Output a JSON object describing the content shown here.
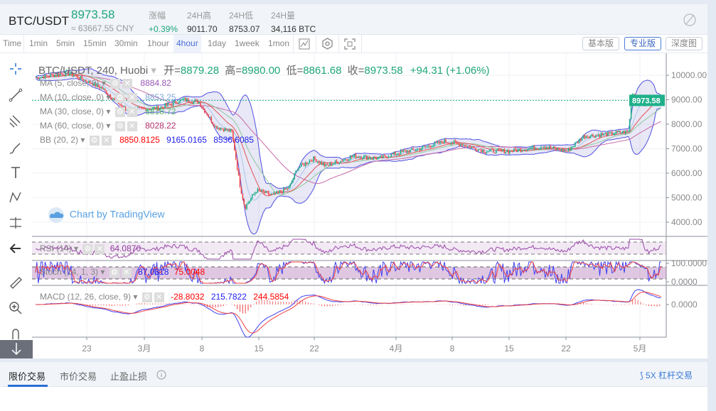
{
  "header": {
    "pair": "BTC/USDT",
    "price": "8973.58",
    "cny": "≈ 63667.55 CNY",
    "stats": [
      {
        "label": "涨幅",
        "value": "+0.39%",
        "color": "#1fa67a"
      },
      {
        "label": "24H高",
        "value": "9011.70"
      },
      {
        "label": "24H低",
        "value": "8753.07"
      },
      {
        "label": "24H量",
        "value": "34,116 BTC"
      }
    ],
    "icon": "brush-off-icon"
  },
  "toolbar": {
    "intervals": [
      "Time",
      "1min",
      "5min",
      "15min",
      "30min",
      "1hour",
      "4hour",
      "1day",
      "1week",
      "1mon"
    ],
    "active": "4hour",
    "views": [
      "基本版",
      "专业版",
      "深度图"
    ],
    "active_view": "专业版"
  },
  "chart": {
    "title": "BTC/USDT, 240, Huobi",
    "ohlc": {
      "open_label": "开=",
      "open": "8879.28",
      "high_label": "高=",
      "high": "8980.00",
      "low_label": "低=",
      "low": "8861.68",
      "close_label": "收=",
      "close": "8973.58",
      "change": "+94.31 (+1.06%)"
    },
    "indicators": [
      {
        "label": "MA (5, close, 0)",
        "value": "8884.82",
        "color": "#9b59b6"
      },
      {
        "label": "MA (10, close, 0)",
        "value": "8853.25",
        "color": "#7fa7d9"
      },
      {
        "label": "MA (30, close, 0)",
        "value": "8818.72",
        "color": "#5fb36c"
      },
      {
        "label": "MA (60, close, 0)",
        "value": "8028.22",
        "color": "#b5316e"
      },
      {
        "label": "BB (20, 2)",
        "values": [
          "8850.8125",
          "9165.0165",
          "8536.6085"
        ],
        "colors": [
          "#f00",
          "#2020f0",
          "#2020f0"
        ]
      }
    ],
    "watermark": "Chart by TradingView",
    "price_ticks": [
      "10000.00",
      "9000.00",
      "8000.00",
      "7000.00",
      "6000.00",
      "5000.00",
      "4000.00"
    ],
    "last_price_tag": "8973.58",
    "rsi": {
      "label": "RSI (14)",
      "value": "64.0870"
    },
    "stoch": {
      "label": "Stoch (14, 1, 3)",
      "k": "87.0318",
      "d": "75.0048",
      "ticks": [
        "100.0000",
        "0.0000"
      ]
    },
    "macd": {
      "label": "MACD (12, 26, close, 9)",
      "values": [
        "-28.8032",
        "215.7822",
        "244.5854"
      ],
      "tick": "0.0000"
    },
    "date_ticks": [
      "23",
      "3月",
      "8",
      "15",
      "22",
      "4月",
      "8",
      "15",
      "22",
      "5月"
    ]
  },
  "chart_data": {
    "type": "candlestick",
    "title": "BTC/USDT, 240, Huobi",
    "ylim": [
      3500,
      10500
    ],
    "x_unit": "days since Feb 17",
    "close_anchors": [
      [
        0,
        9900
      ],
      [
        4,
        10100
      ],
      [
        8,
        9500
      ],
      [
        11,
        8600
      ],
      [
        15,
        8650
      ],
      [
        18,
        9000
      ],
      [
        20,
        8900
      ],
      [
        22,
        7900
      ],
      [
        24,
        7700
      ],
      [
        25,
        5500
      ],
      [
        25.6,
        4600
      ],
      [
        27,
        5300
      ],
      [
        29,
        5100
      ],
      [
        31,
        5400
      ],
      [
        32,
        6200
      ],
      [
        34,
        6600
      ],
      [
        35.5,
        6300
      ],
      [
        39,
        6700
      ],
      [
        42,
        6600
      ],
      [
        44,
        6800
      ],
      [
        47,
        7000
      ],
      [
        50,
        7300
      ],
      [
        52,
        7200
      ],
      [
        55,
        6900
      ],
      [
        58,
        6900
      ],
      [
        62,
        7100
      ],
      [
        65,
        6900
      ],
      [
        67,
        7500
      ],
      [
        70,
        7600
      ],
      [
        72.5,
        7700
      ],
      [
        73,
        9300
      ],
      [
        74.5,
        8800
      ],
      [
        76.5,
        8970
      ]
    ]
  },
  "bottom": {
    "tabs": [
      "限价交易",
      "市价交易",
      "止盈止损"
    ],
    "active": "限价交易",
    "leverage": "5X 杠杆交易"
  }
}
